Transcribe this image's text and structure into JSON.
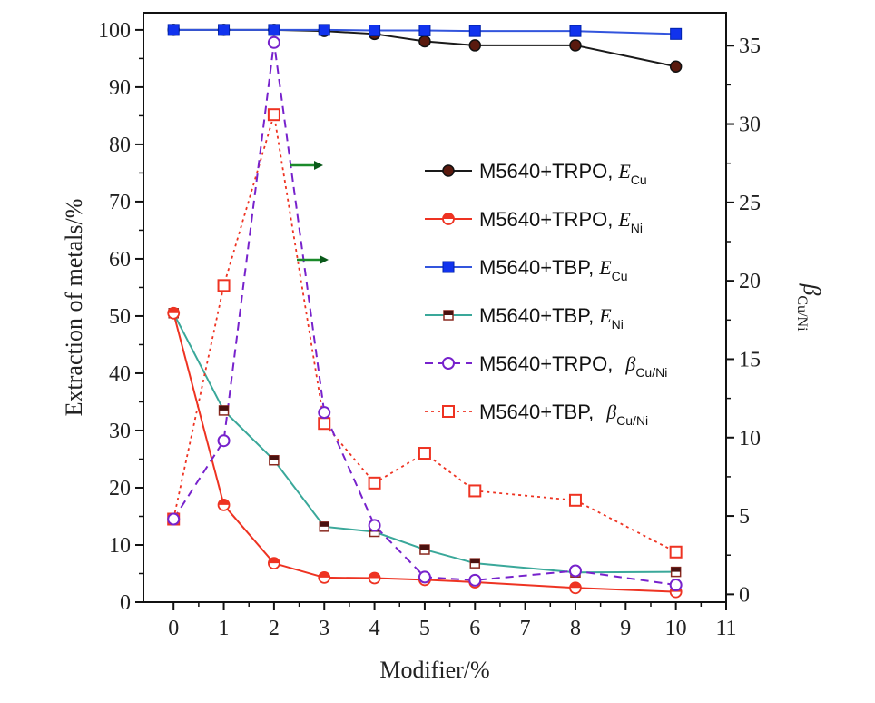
{
  "chart_data": {
    "type": "line",
    "xlabel": "Modifier/%",
    "ylabel_left": "Extraction of metals/%",
    "ylabel_right": {
      "base": "β",
      "sub": "Cu/Ni"
    },
    "xlim": [
      -0.6,
      11
    ],
    "ylim_left": [
      0,
      103
    ],
    "ylim_right": [
      -0.5,
      37.1
    ],
    "x_ticks": [
      0,
      1,
      2,
      3,
      4,
      5,
      6,
      7,
      8,
      9,
      10,
      11
    ],
    "y_ticks_left": [
      0,
      10,
      20,
      30,
      40,
      50,
      60,
      70,
      80,
      90,
      100
    ],
    "y_ticks_right": [
      0,
      5,
      10,
      15,
      20,
      25,
      30,
      35
    ],
    "x": [
      0,
      1,
      2,
      3,
      4,
      5,
      6,
      8,
      10
    ],
    "series": [
      {
        "name": "M5640+TRPO,",
        "math": "E",
        "sub": "Cu",
        "axis": "left",
        "color": "#1a1a1a",
        "fill": "#5a1a0e",
        "marker": "circle",
        "dash": "",
        "values": [
          100,
          100,
          100,
          99.8,
          99.3,
          98,
          97.3,
          97.3,
          93.6
        ]
      },
      {
        "name": "M5640+TRPO,",
        "math": "E",
        "sub": "Ni",
        "axis": "left",
        "color": "#ee3322",
        "fill": "#ee3322",
        "marker": "circle-half",
        "dash": "",
        "values": [
          50.5,
          17,
          6.8,
          4.3,
          4.2,
          3.9,
          3.5,
          2.5,
          1.8
        ]
      },
      {
        "name": "M5640+TBP,",
        "math": "E",
        "sub": "Cu",
        "axis": "left",
        "color": "#3355dd",
        "fill": "#1133ee",
        "marker": "square",
        "dash": "",
        "values": [
          100,
          100,
          100,
          100,
          99.9,
          99.9,
          99.8,
          99.8,
          99.3
        ]
      },
      {
        "name": "M5640+TBP,",
        "math": "E",
        "sub": "Ni",
        "axis": "left",
        "color": "#3aa89a",
        "fill": "#4a1210",
        "marker": "square-half",
        "dash": "",
        "values": [
          50.5,
          33.5,
          24.8,
          13.2,
          12.3,
          9.2,
          6.8,
          5.2,
          5.3
        ]
      },
      {
        "name": "M5640+TRPO,",
        "math": "β",
        "sub": "Cu/Ni",
        "axis": "right",
        "color": "#7722cc",
        "fill": "none",
        "marker": "circle-open",
        "dash": "9,6",
        "values": [
          4.8,
          9.8,
          35.2,
          11.6,
          4.4,
          1.1,
          0.9,
          1.5,
          0.6
        ]
      },
      {
        "name": "M5640+TBP,",
        "math": "β",
        "sub": "Cu/Ni",
        "axis": "right",
        "color": "#ee3322",
        "fill": "none",
        "marker": "square-open",
        "dash": "3,4",
        "values": [
          4.8,
          19.7,
          30.6,
          10.9,
          7.1,
          9,
          6.6,
          6,
          2.7
        ]
      }
    ],
    "annotations": [
      "arrow-right",
      "arrow-right"
    ],
    "legend_placement": "upper-right (inside)"
  }
}
